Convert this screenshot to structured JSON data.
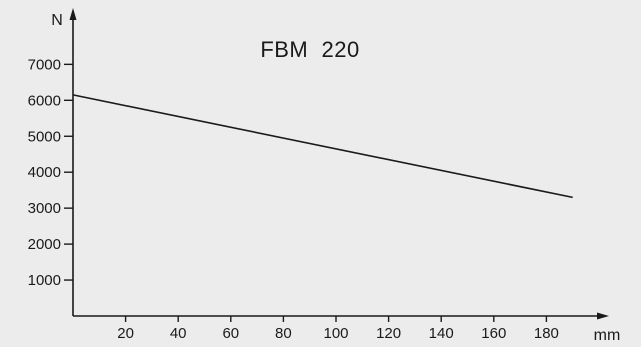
{
  "chart_data": {
    "type": "line",
    "title": "FBM  220",
    "xlabel": "mm",
    "ylabel": "N",
    "xlim": [
      0,
      190
    ],
    "ylim": [
      0,
      7500
    ],
    "x_ticks": [
      "20",
      "40",
      "60",
      "80",
      "100",
      "120",
      "140",
      "160",
      "180"
    ],
    "y_ticks": [
      "1000",
      "2000",
      "3000",
      "4000",
      "5000",
      "6000",
      "7000"
    ],
    "grid": false,
    "series": [
      {
        "x": [
          0,
          190
        ],
        "y": [
          6150,
          3300
        ]
      }
    ],
    "colors": {
      "line": "#1a1a1a",
      "axis": "#1a1a1a",
      "background": "#ececec"
    }
  }
}
